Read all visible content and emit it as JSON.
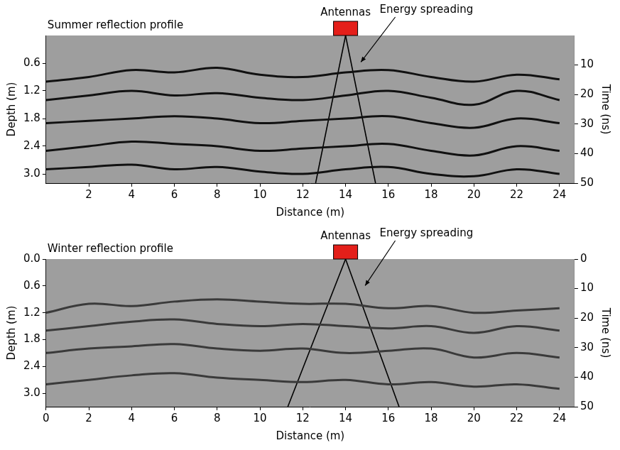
{
  "chart_data": [
    {
      "type": "line",
      "title": "Summer reflection profile",
      "x_label": "Distance (m)",
      "y_label": "Depth (m)",
      "y2_label": "Time (ns)",
      "xlim": [
        0,
        24.7
      ],
      "xticks": [
        2,
        4,
        6,
        8,
        10,
        12,
        14,
        16,
        18,
        20,
        22,
        24
      ],
      "ylim": [
        0,
        3.2
      ],
      "yticks": [
        0.6,
        1.2,
        1.8,
        2.4,
        {
          "value": 3,
          "label": "3.0"
        }
      ],
      "y2lim": [
        0,
        50
      ],
      "y2ticks": [
        10,
        20,
        30,
        40,
        50
      ],
      "grid": false,
      "x": [
        0,
        2,
        4,
        6,
        8,
        10,
        12,
        14,
        16,
        18,
        20,
        22,
        24
      ],
      "series": [
        {
          "color": "#111111",
          "values": [
            1.0,
            0.9,
            0.75,
            0.8,
            0.7,
            0.85,
            0.9,
            0.8,
            0.75,
            0.9,
            1.0,
            0.85,
            0.95
          ]
        },
        {
          "color": "#111111",
          "values": [
            1.4,
            1.3,
            1.2,
            1.3,
            1.25,
            1.35,
            1.4,
            1.3,
            1.2,
            1.35,
            1.5,
            1.2,
            1.4
          ]
        },
        {
          "color": "#111111",
          "values": [
            1.9,
            1.85,
            1.8,
            1.75,
            1.8,
            1.9,
            1.85,
            1.8,
            1.75,
            1.9,
            2.0,
            1.8,
            1.9
          ]
        },
        {
          "color": "#111111",
          "values": [
            2.5,
            2.4,
            2.3,
            2.35,
            2.4,
            2.5,
            2.45,
            2.4,
            2.35,
            2.5,
            2.6,
            2.4,
            2.5
          ]
        },
        {
          "color": "#111111",
          "values": [
            2.9,
            2.85,
            2.8,
            2.9,
            2.85,
            2.95,
            3.0,
            2.9,
            2.85,
            3.0,
            3.05,
            2.9,
            3.0
          ]
        }
      ],
      "antenna": {
        "label": "Antennas",
        "x": 14,
        "color": "#e41f1a"
      },
      "energy_spreading": {
        "label": "Energy spreading",
        "cone_x": [
          12.6,
          15.4
        ]
      }
    },
    {
      "type": "line",
      "title": "Winter reflection profile",
      "x_label": "Distance (m)",
      "y_label": "Depth (m)",
      "y2_label": "Time (ns)",
      "xlim": [
        0,
        24.7
      ],
      "xticks": [
        0,
        2,
        4,
        6,
        8,
        10,
        12,
        14,
        16,
        18,
        20,
        22,
        24
      ],
      "ylim": [
        0,
        3.3
      ],
      "yticks": [
        {
          "value": 0,
          "label": "0.0"
        },
        0.6,
        1.2,
        1.8,
        2.4,
        {
          "value": 3,
          "label": "3.0"
        }
      ],
      "y2lim": [
        0,
        50
      ],
      "y2ticks": [
        0,
        10,
        20,
        30,
        40,
        50
      ],
      "grid": false,
      "x": [
        0,
        2,
        4,
        6,
        8,
        10,
        12,
        14,
        16,
        18,
        20,
        22,
        24
      ],
      "series": [
        {
          "color": "#3a3a3a",
          "values": [
            1.2,
            1.0,
            1.05,
            0.95,
            0.9,
            0.95,
            1.0,
            1.0,
            1.1,
            1.05,
            1.2,
            1.15,
            1.1
          ]
        },
        {
          "color": "#3a3a3a",
          "values": [
            1.6,
            1.5,
            1.4,
            1.35,
            1.45,
            1.5,
            1.45,
            1.5,
            1.55,
            1.5,
            1.65,
            1.5,
            1.6
          ]
        },
        {
          "color": "#3a3a3a",
          "values": [
            2.1,
            2.0,
            1.95,
            1.9,
            2.0,
            2.05,
            2.0,
            2.1,
            2.05,
            2.0,
            2.2,
            2.1,
            2.2
          ]
        },
        {
          "color": "#3a3a3a",
          "values": [
            2.8,
            2.7,
            2.6,
            2.55,
            2.65,
            2.7,
            2.75,
            2.7,
            2.8,
            2.75,
            2.85,
            2.8,
            2.9
          ]
        }
      ],
      "antenna": {
        "label": "Antennas",
        "x": 14,
        "color": "#e41f1a"
      },
      "energy_spreading": {
        "label": "Energy spreading",
        "cone_x": [
          11.3,
          16.5
        ]
      }
    }
  ]
}
